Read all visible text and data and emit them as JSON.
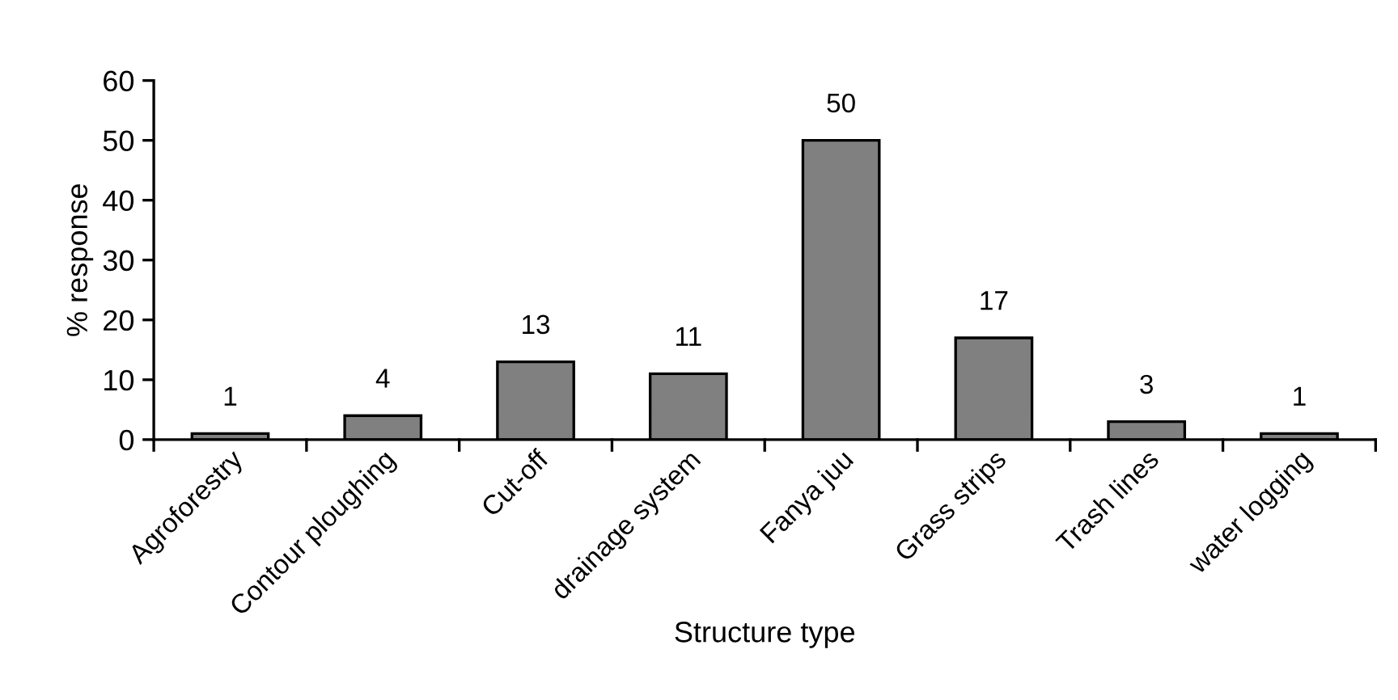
{
  "chart_data": {
    "type": "bar",
    "xlabel": "Structure type",
    "ylabel": "% response",
    "categories": [
      "Agroforestry",
      "Contour ploughing",
      "Cut-off",
      "drainage system",
      "Fanya juu",
      "Grass strips",
      "Trash lines",
      "water logging"
    ],
    "values": [
      1,
      4,
      13,
      11,
      50,
      17,
      3,
      1
    ],
    "color": "#808080",
    "data_labels": true,
    "ylim": [
      0,
      60
    ],
    "yticks": [
      0,
      10,
      20,
      30,
      40,
      50,
      60
    ],
    "grid": false,
    "legend": false
  }
}
